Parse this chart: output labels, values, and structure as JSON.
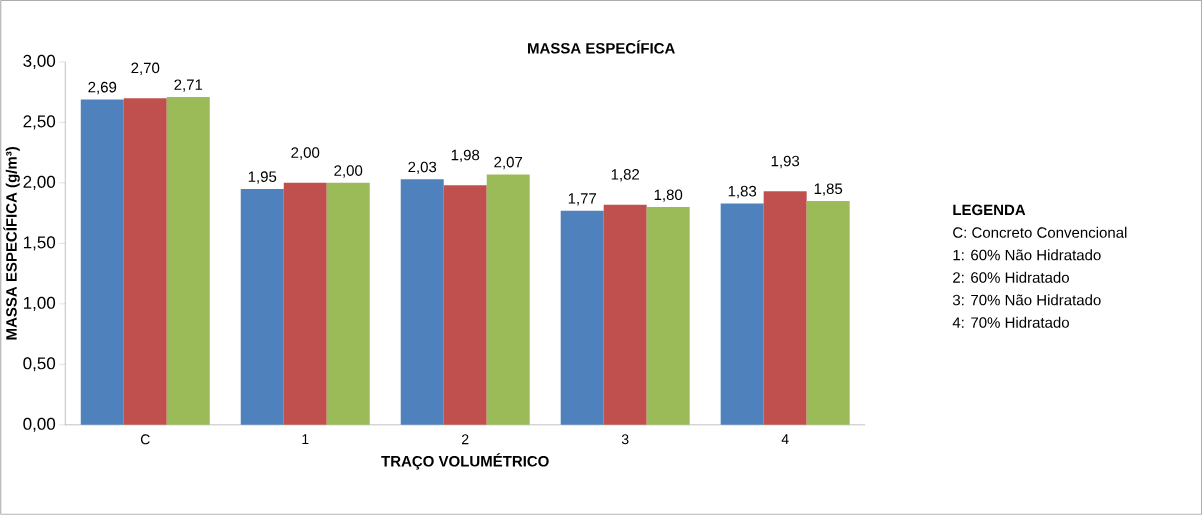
{
  "chart_data": {
    "type": "bar",
    "title": "MASSA ESPECÍFICA",
    "xlabel": "TRAÇO VOLUMÉTRICO",
    "ylabel": "MASSA ESPECÍFICA (g/m³)",
    "categories": [
      "C",
      "1",
      "2",
      "3",
      "4"
    ],
    "series": [
      {
        "color": "#4f81bd",
        "values": [
          2.69,
          1.95,
          2.03,
          1.77,
          1.83
        ],
        "value_labels": [
          "2,69",
          "1,95",
          "2,03",
          "1,77",
          "1,83"
        ]
      },
      {
        "color": "#c0504d",
        "values": [
          2.7,
          2.0,
          1.98,
          1.82,
          1.93
        ],
        "value_labels": [
          "2,70",
          "2,00",
          "1,98",
          "1,82",
          "1,93"
        ]
      },
      {
        "color": "#9bbb59",
        "values": [
          2.71,
          2.0,
          2.07,
          1.8,
          1.85
        ],
        "value_labels": [
          "2,71",
          "2,00",
          "2,07",
          "1,80",
          "1,85"
        ]
      }
    ],
    "ylim": [
      0,
      3
    ],
    "yticks": [
      {
        "value": 0,
        "label": "0,00"
      },
      {
        "value": 0.5,
        "label": "0,50"
      },
      {
        "value": 1,
        "label": "1,00"
      },
      {
        "value": 1.5,
        "label": "1,50"
      },
      {
        "value": 2,
        "label": "2,00"
      },
      {
        "value": 2.5,
        "label": "2,50"
      },
      {
        "value": 3,
        "label": "3,00"
      }
    ],
    "grid": false,
    "annotations": [
      "LEGENDA",
      "C: Concreto Convencional",
      "1: 60% Não Hidratado",
      "2: 60% Hidratado",
      "3: 70% Não Hidratado",
      "4: 70% Hidratado"
    ]
  }
}
